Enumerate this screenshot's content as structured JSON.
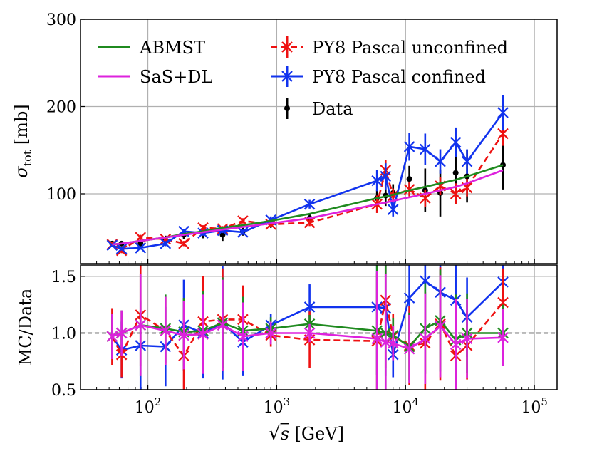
{
  "colors": {
    "abmst": "#1f8a1f",
    "sasdl": "#dd22dd",
    "unconfined": "#ee1111",
    "confined": "#1133ee",
    "data": "#000000",
    "grid": "#b0b0b0"
  },
  "chart_data": [
    {
      "id": "top",
      "type": "line",
      "xscale": "log",
      "xlim": [
        30,
        150000
      ],
      "ylim": [
        20,
        300
      ],
      "yticks": [
        100,
        200,
        300
      ],
      "ytick_labels": [
        "100",
        "200",
        "300"
      ],
      "ylabel_symbol": "σ",
      "ylabel_sub": "tot",
      "ylabel_unit": " [mb]",
      "legend": {
        "placement": "top",
        "col1": [
          {
            "label": "ABMST",
            "series": "abmst"
          },
          {
            "label": "SaS+DL",
            "series": "sasdl"
          }
        ],
        "col2": [
          {
            "label": "PY8 Pascal unconfined",
            "series": "unconfined"
          },
          {
            "label": "PY8 Pascal confined",
            "series": "confined"
          },
          {
            "label": "Data",
            "series": "data"
          }
        ]
      },
      "x": [
        52.8,
        62.5,
        87.7,
        137,
        190,
        268,
        380,
        546,
        900,
        1800,
        6000,
        7000,
        8000,
        10700,
        14200,
        18600,
        24500,
        30000,
        57000
      ],
      "series": [
        {
          "key": "abmst",
          "name": "ABMST",
          "style": "solid",
          "values": [
            42,
            43,
            46,
            50,
            54,
            57,
            61,
            64,
            69,
            77,
            95,
            97,
            99,
            104,
            108,
            112,
            116,
            120,
            133
          ]
        },
        {
          "key": "sasdl",
          "name": "SaS+DL",
          "style": "solid",
          "values": [
            42,
            43,
            46,
            50,
            53,
            56,
            59,
            62,
            66,
            72,
            88,
            90,
            92,
            96,
            100,
            104,
            108,
            112,
            127
          ]
        },
        {
          "key": "unconfined",
          "name": "PY8 Pascal unconfined",
          "style": "dashed",
          "values": [
            42,
            35,
            50,
            48,
            43,
            61,
            60,
            69,
            65,
            67,
            88,
            127,
            98,
            105,
            95,
            109,
            100,
            107,
            169
          ],
          "errors": [
            3,
            3,
            3,
            3,
            3,
            3,
            3,
            3,
            3,
            4,
            10,
            12,
            8,
            8,
            10,
            10,
            12,
            10,
            14
          ]
        },
        {
          "key": "confined",
          "name": "PY8 Pascal confined",
          "style": "solid",
          "values": [
            41,
            37,
            38,
            43,
            57,
            55,
            58,
            56,
            70,
            88,
            115,
            120,
            82,
            154,
            151,
            137,
            159,
            137,
            193
          ],
          "errors": [
            2,
            2,
            2,
            3,
            3,
            3,
            3,
            3,
            4,
            5,
            12,
            15,
            8,
            16,
            18,
            14,
            17,
            14,
            20
          ]
        },
        {
          "key": "data",
          "name": "Data",
          "style": "points",
          "values": [
            43,
            43,
            43,
            47,
            53,
            55,
            53,
            57,
            66,
            72,
            95,
            98,
            101,
            117,
            104,
            101,
            124,
            120,
            133
          ],
          "errors": [
            2,
            2,
            2,
            5,
            5,
            6,
            7,
            5,
            5,
            5,
            10,
            12,
            10,
            15,
            25,
            27,
            35,
            30,
            28
          ]
        }
      ]
    },
    {
      "id": "bottom",
      "type": "line",
      "xscale": "log",
      "xlim": [
        30,
        150000
      ],
      "ylim": [
        0.5,
        1.6
      ],
      "yticks": [
        0.5,
        1.0,
        1.5
      ],
      "ytick_labels": [
        "0.5",
        "1.0",
        "1.5"
      ],
      "ylabel": "MC/Data",
      "xlabel_unit": " [GeV]",
      "xticks": [
        100,
        1000,
        10000,
        100000
      ],
      "xtick_base": "10",
      "xtick_exps": [
        "2",
        "3",
        "4",
        "5"
      ],
      "reference_line": 1.0,
      "x": [
        52.8,
        62.5,
        87.7,
        137,
        190,
        268,
        380,
        546,
        900,
        1800,
        6000,
        7000,
        8000,
        10700,
        14200,
        18600,
        24500,
        30000,
        57000
      ],
      "series": [
        {
          "key": "abmst",
          "name": "ABMST",
          "style": "solid",
          "values": [
            0.97,
            1.0,
            1.07,
            1.04,
            1.01,
            1.02,
            1.09,
            1.02,
            1.04,
            1.08,
            1.02,
            1.0,
            0.98,
            0.88,
            1.04,
            1.11,
            0.94,
            1.0,
            1.0
          ],
          "errors": [
            0.2,
            0.2,
            0.45,
            0.3,
            0.3,
            0.35,
            0.4,
            0.3,
            0.1,
            0.08,
            0.6,
            0.6,
            0.15,
            0.3,
            0.4,
            0.45,
            0.4,
            0.35,
            0.25
          ]
        },
        {
          "key": "sasdl",
          "name": "SaS+DL",
          "style": "solid",
          "values": [
            0.97,
            1.0,
            1.07,
            1.02,
            0.98,
            0.99,
            1.07,
            0.97,
            1.0,
            1.0,
            0.95,
            0.92,
            0.91,
            0.86,
            0.95,
            1.06,
            0.9,
            0.95,
            0.96
          ],
          "errors": [
            0.2,
            0.2,
            0.45,
            0.3,
            0.3,
            0.35,
            0.4,
            0.3,
            0.1,
            0.08,
            0.6,
            0.6,
            0.15,
            0.3,
            0.4,
            0.45,
            0.4,
            0.35,
            0.25
          ]
        },
        {
          "key": "unconfined",
          "name": "PY8 Pascal unconfined",
          "style": "dashed",
          "values": [
            0.97,
            0.81,
            1.16,
            1.02,
            0.8,
            1.1,
            1.12,
            1.12,
            0.98,
            0.94,
            0.93,
            1.29,
            0.97,
            0.89,
            0.91,
            1.08,
            0.8,
            0.89,
            1.27
          ],
          "errors": [
            0.25,
            0.2,
            0.45,
            0.3,
            0.3,
            0.4,
            0.45,
            0.3,
            0.1,
            0.25,
            0.6,
            0.6,
            0.2,
            0.35,
            0.45,
            0.5,
            0.4,
            0.3,
            0.3
          ]
        },
        {
          "key": "confined",
          "name": "PY8 Pascal confined",
          "style": "solid",
          "values": [
            0.97,
            0.85,
            0.89,
            0.88,
            1.07,
            1.0,
            1.09,
            0.92,
            1.07,
            1.23,
            1.23,
            1.22,
            0.81,
            1.31,
            1.46,
            1.36,
            1.29,
            1.14,
            1.45
          ],
          "errors": [
            0.2,
            0.25,
            0.4,
            0.35,
            0.4,
            0.4,
            0.5,
            0.3,
            0.1,
            0.2,
            0.6,
            0.6,
            0.2,
            0.4,
            0.45,
            0.4,
            0.4,
            0.35,
            0.35
          ]
        }
      ]
    }
  ]
}
